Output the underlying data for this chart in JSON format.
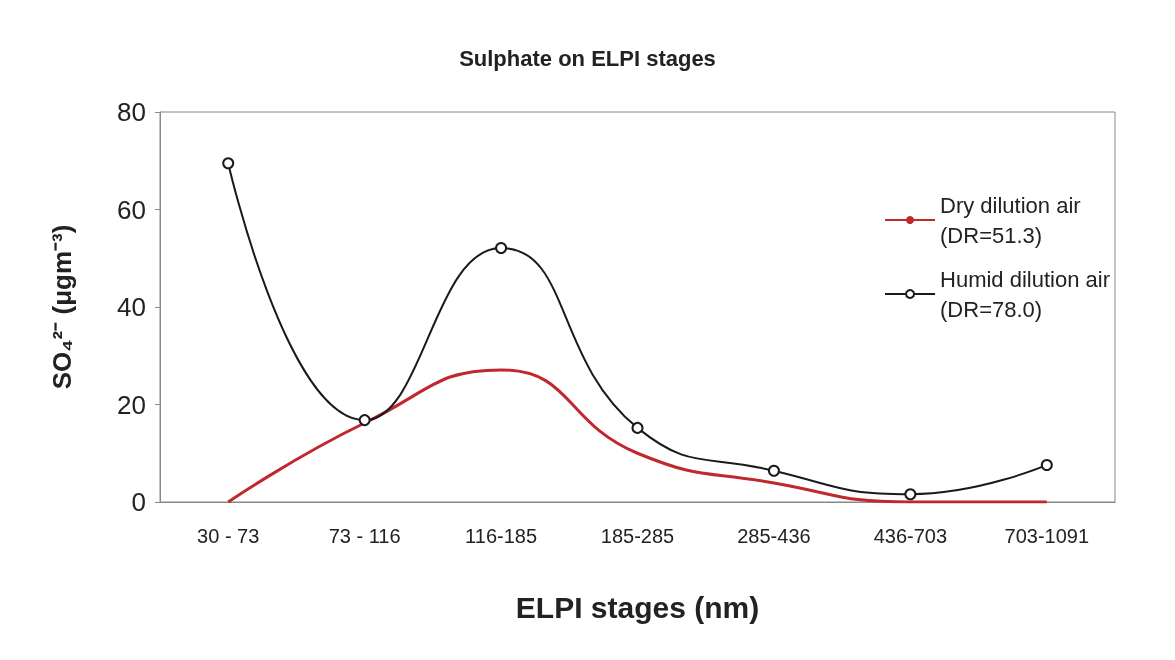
{
  "chart_data": {
    "type": "line",
    "title": "Sulphate on ELPI stages",
    "xlabel": "ELPI stages (nm)",
    "ylabel": "SO₄²⁻ (μgm⁻³)",
    "categories": [
      "30 - 73",
      "73 - 116",
      "116-185",
      "185-285",
      "285-436",
      "436-703",
      "703-1091"
    ],
    "series": [
      {
        "name": "Dry dilution air\n(DR=51.3)",
        "color": "#c0282d",
        "values": [
          0,
          16.2,
          27.1,
          10,
          3.9,
          0,
          0
        ],
        "marker": "none"
      },
      {
        "name": "Humid dilution air\n(DR=78.0)",
        "color": "#1a1a1a",
        "values": [
          69.5,
          16.8,
          52.1,
          15.2,
          6.4,
          1.6,
          7.6
        ],
        "marker": "circle"
      }
    ],
    "ylim": [
      0,
      80
    ],
    "yticks": [
      0,
      20,
      40,
      60,
      80
    ],
    "grid": false,
    "legend": "right"
  }
}
